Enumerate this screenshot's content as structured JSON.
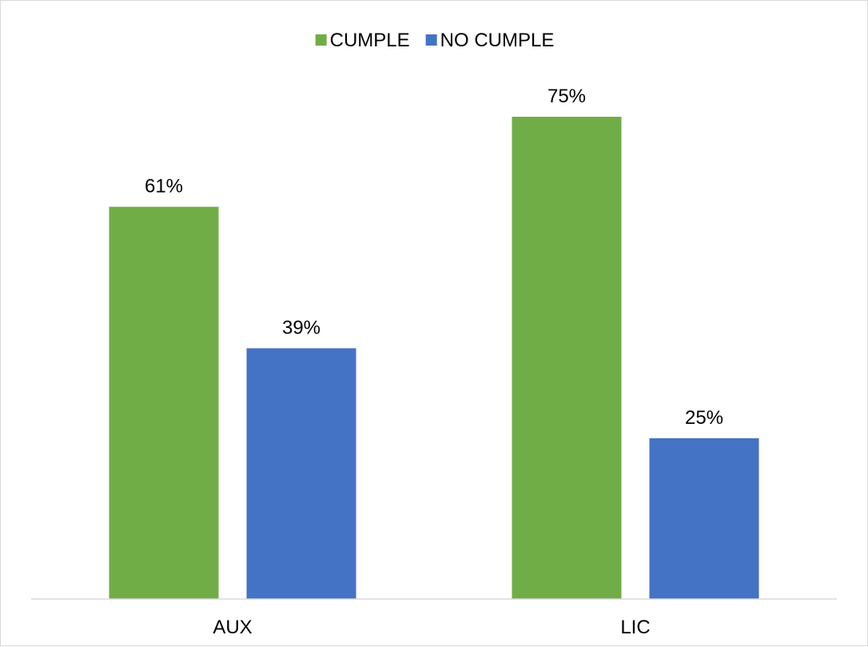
{
  "chart_data": {
    "type": "bar",
    "categories": [
      "AUX",
      "LIC"
    ],
    "series": [
      {
        "name": "CUMPLE",
        "color": "#70ad47",
        "values": [
          61,
          75
        ],
        "labels": [
          "61%",
          "75%"
        ]
      },
      {
        "name": "NO CUMPLE",
        "color": "#4472c4",
        "values": [
          39,
          25
        ],
        "labels": [
          "39%",
          "25%"
        ]
      }
    ],
    "legend_position": "top",
    "ylim": [
      0,
      80
    ],
    "grid": false
  }
}
